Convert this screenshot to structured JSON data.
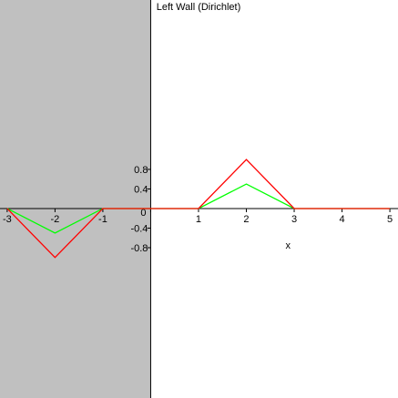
{
  "chart_data": {
    "type": "line",
    "title": "Left Wall (Dirichlet)",
    "x_label": "x",
    "x": [
      -3,
      -2,
      -1,
      0,
      1,
      2,
      3,
      4,
      5
    ],
    "series": [
      {
        "color": "#00ff00",
        "values": [
          0,
          -0.5,
          0,
          0,
          0,
          0.5,
          0,
          0,
          0
        ]
      },
      {
        "color": "#ff0000",
        "values": [
          0,
          -1,
          0,
          0,
          0,
          1,
          0,
          0,
          0
        ]
      }
    ],
    "xlim": [
      -3.15,
      5.17
    ],
    "ylim": [
      -3.87,
      4.26
    ],
    "xticks": [
      -3,
      -2,
      -1,
      0,
      1,
      2,
      3,
      4,
      5
    ],
    "yticks": [
      -0.8,
      -0.4,
      0.4,
      0.8
    ],
    "shade_color": "#c0c0c0"
  }
}
